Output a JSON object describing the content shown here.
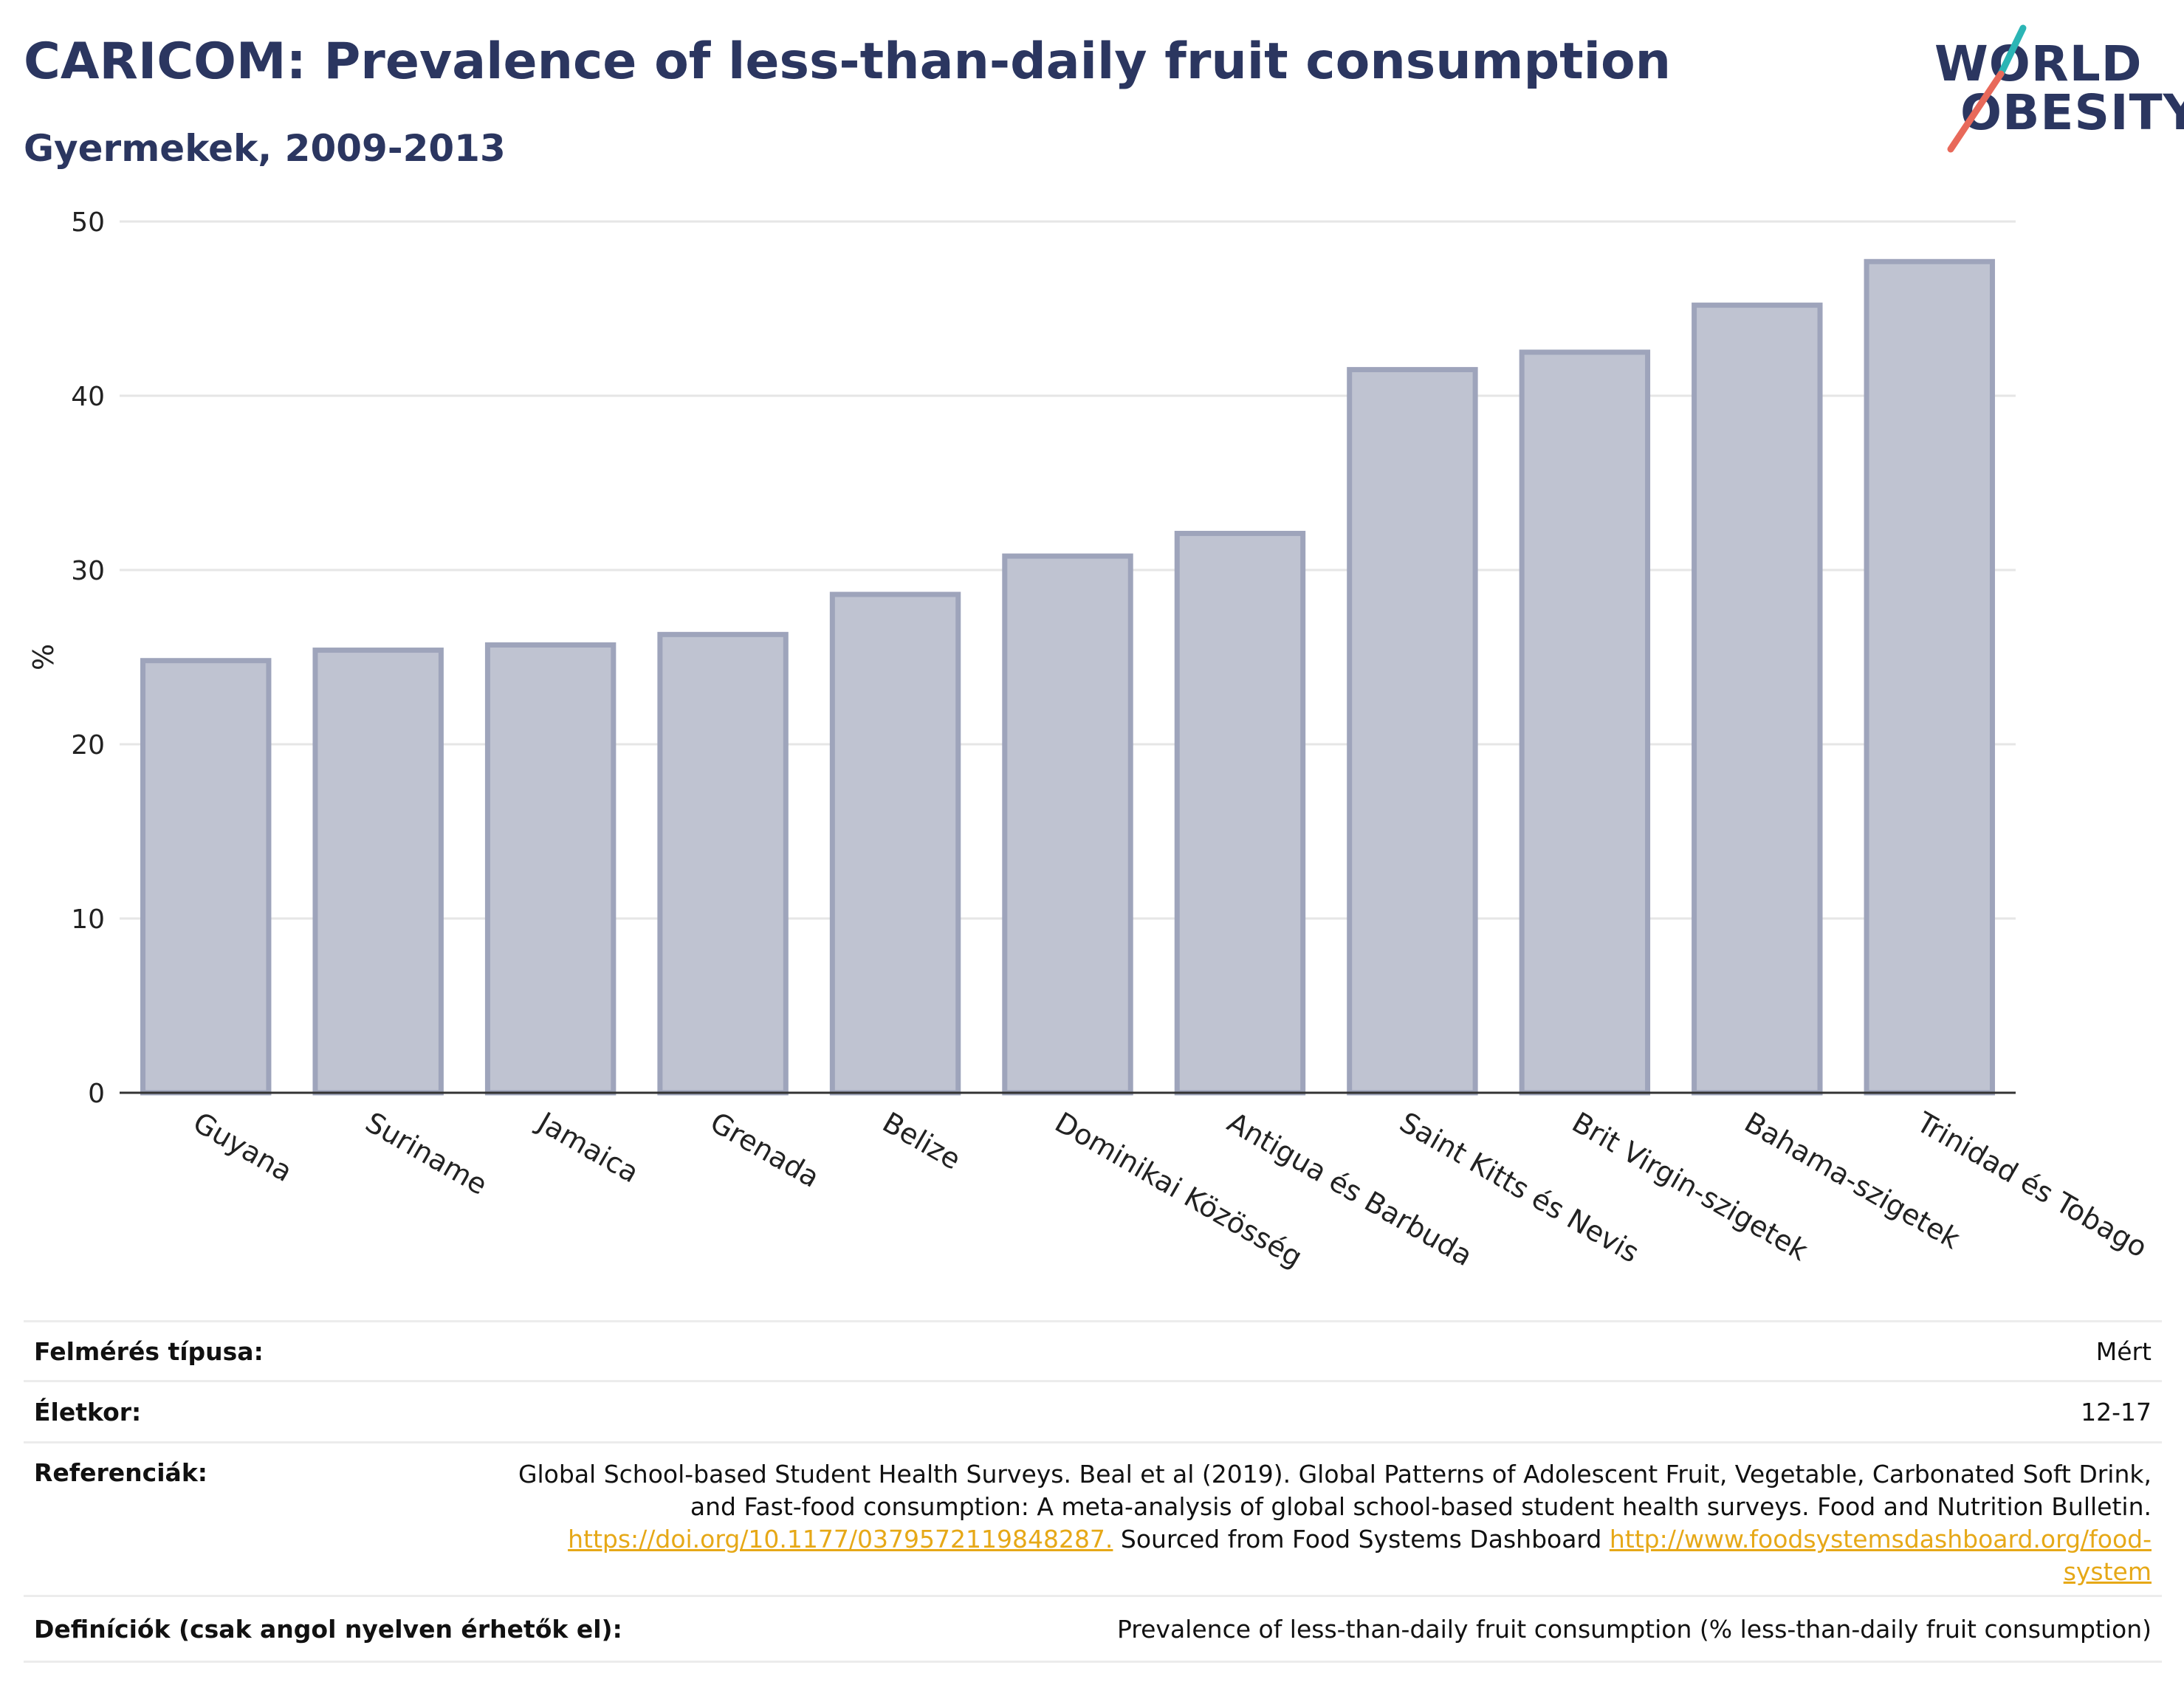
{
  "header": {
    "title": "CARICOM: Prevalence of less-than-daily fruit consumption",
    "subtitle": "Gyermekek, 2009-2013"
  },
  "logo": {
    "line1": "WORLD",
    "line2": "OBESITY",
    "slash_color_top": "#2bb5b5",
    "slash_color_bottom": "#e8695a"
  },
  "colors": {
    "bar_fill": "#bfc3d1",
    "bar_stroke": "#9ea4bb",
    "grid": "#e6e6e6",
    "axis": "#333333",
    "text": "#2b3660",
    "link": "#e6a817"
  },
  "chart_data": {
    "type": "bar",
    "title": "CARICOM: Prevalence of less-than-daily fruit consumption",
    "subtitle": "Gyermekek, 2009-2013",
    "xlabel": "",
    "ylabel": "%",
    "ylim": [
      0,
      50
    ],
    "yticks": [
      0,
      10,
      20,
      30,
      40,
      50
    ],
    "grid": true,
    "categories": [
      "Guyana",
      "Suriname",
      "Jamaica",
      "Grenada",
      "Belize",
      "Dominikai Közösség",
      "Antigua és Barbuda",
      "Saint Kitts és Nevis",
      "Brit Virgin-szigetek",
      "Bahama-szigetek",
      "Trinidad és Tobago"
    ],
    "values": [
      24.8,
      25.4,
      25.7,
      26.3,
      28.6,
      30.8,
      32.1,
      41.5,
      42.5,
      45.2,
      47.7
    ]
  },
  "info": {
    "survey_label": "Felmérés típusa:",
    "survey_value": "Mért",
    "age_label": "Életkor:",
    "age_value": "12-17",
    "ref_label": "Referenciák:",
    "ref_line1": "Global School-based Student Health Surveys. Beal et al (2019). Global Patterns of Adolescent Fruit, Vegetable, Carbonated Soft Drink,",
    "ref_line2": "and Fast-food consumption: A meta-analysis of global school-based student health surveys. Food and Nutrition Bulletin.",
    "ref_link1": "https://doi.org/10.1177/0379572119848287.",
    "ref_mid": " Sourced from Food Systems Dashboard ",
    "ref_link2a": "http://www.foodsystemsdashboard.org/food-",
    "ref_link2b": "system",
    "def_label": "Definíciók (csak angol nyelven érhetők el):",
    "def_value": "Prevalence of less-than-daily fruit consumption (% less-than-daily fruit consumption)"
  }
}
